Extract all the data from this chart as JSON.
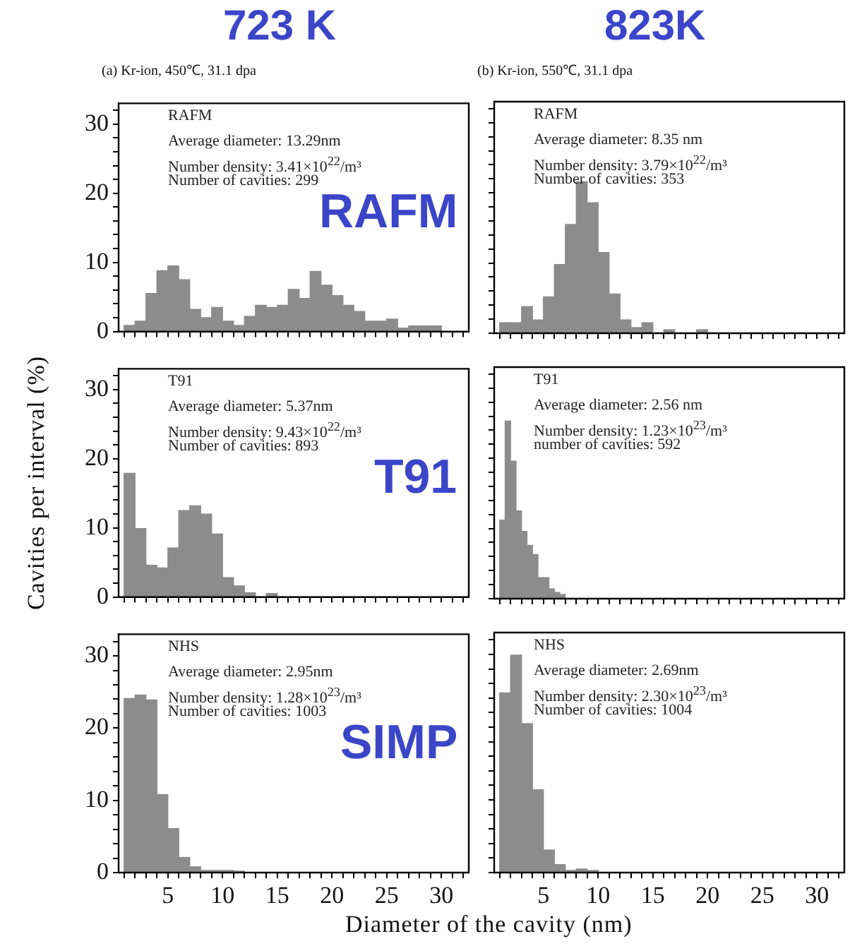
{
  "chart_data": [
    {
      "type": "histogram",
      "title": "723 K",
      "subtitle": "(a) Kr-ion,  450℃, 31.1 dpa",
      "annotations": [
        "RAFM",
        "Average diameter: 13.29nm",
        "Number density: 3.41×10$^{22}$/m³",
        "Number of cavities: 299",
        "RAFM"
      ],
      "bins": [
        1,
        2,
        3,
        4,
        5,
        6,
        7,
        8,
        9,
        10,
        11,
        12,
        13,
        14,
        15,
        16,
        17,
        18,
        19,
        20,
        21,
        22,
        23,
        24,
        25,
        26,
        27,
        28,
        29,
        30
      ],
      "values": [
        0.9,
        1.5,
        5.5,
        8.8,
        9.5,
        7.5,
        3.2,
        2.0,
        3.5,
        1.5,
        0.9,
        2.2,
        3.8,
        3.5,
        3.8,
        6.1,
        4.8,
        8.7,
        6.7,
        5.2,
        3.8,
        2.9,
        1.5,
        1.5,
        1.8,
        0.5,
        0.8,
        0.8,
        0.8
      ],
      "color": "#8c8c8c",
      "xlim": [
        0.5,
        32.5
      ],
      "ylim": [
        0,
        33
      ],
      "xticks": [
        {
          "value": 1,
          "label": null
        },
        {
          "value": 2,
          "label": null
        },
        {
          "value": 3,
          "label": null
        },
        {
          "value": 4,
          "label": null
        },
        5,
        {
          "value": 6,
          "label": null
        },
        {
          "value": 7,
          "label": null
        },
        {
          "value": 8,
          "label": null
        },
        {
          "value": 9,
          "label": null
        },
        10,
        {
          "value": 11,
          "label": null
        },
        {
          "value": 12,
          "label": null
        },
        {
          "value": 13,
          "label": null
        },
        {
          "value": 14,
          "label": null
        },
        15,
        {
          "value": 16,
          "label": null
        },
        {
          "value": 17,
          "label": null
        },
        {
          "value": 18,
          "label": null
        },
        {
          "value": 19,
          "label": null
        },
        20,
        {
          "value": 21,
          "label": null
        },
        {
          "value": 22,
          "label": null
        },
        {
          "value": 23,
          "label": null
        },
        {
          "value": 24,
          "label": null
        },
        25,
        {
          "value": 26,
          "label": null
        },
        {
          "value": 27,
          "label": null
        },
        {
          "value": 28,
          "label": null
        },
        {
          "value": 29,
          "label": null
        },
        30,
        {
          "value": 31,
          "label": null
        },
        {
          "value": 32,
          "label": null
        }
      ],
      "yticks": [
        0,
        {
          "value": 2,
          "label": null
        },
        {
          "value": 4,
          "label": null
        },
        {
          "value": 6,
          "label": null
        },
        {
          "value": 8,
          "label": null
        },
        10,
        {
          "value": 12,
          "label": null
        },
        {
          "value": 14,
          "label": null
        },
        {
          "value": 16,
          "label": null
        },
        {
          "value": 18,
          "label": null
        },
        20,
        {
          "value": 22,
          "label": null
        },
        {
          "value": 24,
          "label": null
        },
        {
          "value": 26,
          "label": null
        },
        {
          "value": 28,
          "label": null
        },
        30,
        {
          "value": 32,
          "label": null
        }
      ],
      "tick_labels": "y"
    },
    {
      "type": "histogram",
      "title": "823K",
      "subtitle": "(b) Kr-ion, 550℃, 31.1 dpa",
      "annotations": [
        "RAFM",
        "Average diameter: 8.35 nm",
        "Number density: 3.79×10$^{22}$/m³",
        "Number of cavities: 353"
      ],
      "bins": [
        1,
        2,
        3,
        4,
        5,
        6,
        7,
        8,
        9,
        10,
        11,
        12,
        13,
        14,
        15,
        16,
        17,
        18,
        19,
        20
      ],
      "values": [
        1.5,
        1.5,
        3.8,
        1.9,
        5.2,
        9.8,
        15.5,
        21.6,
        18.6,
        11.5,
        5.6,
        1.9,
        0.8,
        1.5,
        0,
        0.5,
        0,
        0,
        0.5
      ],
      "color": "#8c8c8c",
      "xlim": [
        0.5,
        32.5
      ],
      "ylim": [
        0,
        33
      ],
      "xticks": [
        {
          "value": 1,
          "label": null
        },
        {
          "value": 2,
          "label": null
        },
        {
          "value": 3,
          "label": null
        },
        {
          "value": 4,
          "label": null
        },
        5,
        {
          "value": 6,
          "label": null
        },
        {
          "value": 7,
          "label": null
        },
        {
          "value": 8,
          "label": null
        },
        {
          "value": 9,
          "label": null
        },
        10,
        {
          "value": 11,
          "label": null
        },
        {
          "value": 12,
          "label": null
        },
        {
          "value": 13,
          "label": null
        },
        {
          "value": 14,
          "label": null
        },
        15,
        {
          "value": 16,
          "label": null
        },
        {
          "value": 17,
          "label": null
        },
        {
          "value": 18,
          "label": null
        },
        {
          "value": 19,
          "label": null
        },
        20,
        {
          "value": 21,
          "label": null
        },
        {
          "value": 22,
          "label": null
        },
        {
          "value": 23,
          "label": null
        },
        {
          "value": 24,
          "label": null
        },
        25,
        {
          "value": 26,
          "label": null
        },
        {
          "value": 27,
          "label": null
        },
        {
          "value": 28,
          "label": null
        },
        {
          "value": 29,
          "label": null
        },
        30,
        {
          "value": 31,
          "label": null
        },
        {
          "value": 32,
          "label": null
        }
      ],
      "yticks": [
        0,
        {
          "value": 2,
          "label": null
        },
        {
          "value": 4,
          "label": null
        },
        {
          "value": 6,
          "label": null
        },
        {
          "value": 8,
          "label": null
        },
        10,
        {
          "value": 12,
          "label": null
        },
        {
          "value": 14,
          "label": null
        },
        {
          "value": 16,
          "label": null
        },
        {
          "value": 18,
          "label": null
        },
        20,
        {
          "value": 22,
          "label": null
        },
        {
          "value": 24,
          "label": null
        },
        {
          "value": 26,
          "label": null
        },
        {
          "value": 28,
          "label": null
        },
        30,
        {
          "value": 32,
          "label": null
        }
      ],
      "tick_labels": false
    },
    {
      "type": "histogram",
      "ylabel": "Cavities per interval (%)",
      "annotations": [
        "T91",
        "Average diameter: 5.37nm",
        "Number density: 9.43×10$^{22}$/m³",
        "Number of cavities: 893",
        "T91"
      ],
      "bins": [
        1,
        2,
        3,
        4,
        5,
        6,
        7,
        8,
        9,
        10,
        11,
        12,
        13,
        14,
        15
      ],
      "values": [
        17.9,
        9.9,
        4.6,
        4.2,
        7.1,
        12.5,
        13.2,
        12.0,
        9.1,
        2.8,
        1.6,
        0.6,
        0,
        0.5
      ],
      "color": "#8c8c8c",
      "xlim": [
        0.5,
        32.5
      ],
      "ylim": [
        0,
        33
      ],
      "xticks": [
        {
          "value": 1,
          "label": null
        },
        {
          "value": 2,
          "label": null
        },
        {
          "value": 3,
          "label": null
        },
        {
          "value": 4,
          "label": null
        },
        5,
        {
          "value": 6,
          "label": null
        },
        {
          "value": 7,
          "label": null
        },
        {
          "value": 8,
          "label": null
        },
        {
          "value": 9,
          "label": null
        },
        10,
        {
          "value": 11,
          "label": null
        },
        {
          "value": 12,
          "label": null
        },
        {
          "value": 13,
          "label": null
        },
        {
          "value": 14,
          "label": null
        },
        15,
        {
          "value": 16,
          "label": null
        },
        {
          "value": 17,
          "label": null
        },
        {
          "value": 18,
          "label": null
        },
        {
          "value": 19,
          "label": null
        },
        20,
        {
          "value": 21,
          "label": null
        },
        {
          "value": 22,
          "label": null
        },
        {
          "value": 23,
          "label": null
        },
        {
          "value": 24,
          "label": null
        },
        25,
        {
          "value": 26,
          "label": null
        },
        {
          "value": 27,
          "label": null
        },
        {
          "value": 28,
          "label": null
        },
        {
          "value": 29,
          "label": null
        },
        30,
        {
          "value": 31,
          "label": null
        },
        {
          "value": 32,
          "label": null
        }
      ],
      "yticks": [
        0,
        {
          "value": 2,
          "label": null
        },
        {
          "value": 4,
          "label": null
        },
        {
          "value": 6,
          "label": null
        },
        {
          "value": 8,
          "label": null
        },
        10,
        {
          "value": 12,
          "label": null
        },
        {
          "value": 14,
          "label": null
        },
        {
          "value": 16,
          "label": null
        },
        {
          "value": 18,
          "label": null
        },
        20,
        {
          "value": 22,
          "label": null
        },
        {
          "value": 24,
          "label": null
        },
        {
          "value": 26,
          "label": null
        },
        {
          "value": 28,
          "label": null
        },
        30,
        {
          "value": 32,
          "label": null
        }
      ],
      "tick_labels": "y"
    },
    {
      "type": "histogram",
      "annotations": [
        "T91",
        "Average diameter: 2.56 nm",
        "Number density: 1.23×10$^{23}$/m³",
        "number of cavities: 592"
      ],
      "bins": [
        1,
        1.5,
        2,
        2.5,
        3,
        3.5,
        4,
        4.5,
        5,
        5.5,
        6,
        6.5,
        7
      ],
      "values": [
        11.2,
        25.3,
        19.6,
        12.5,
        9.6,
        7.6,
        6.3,
        3.0,
        3.0,
        1.4,
        0.9,
        0.6
      ],
      "color": "#8c8c8c",
      "xlim": [
        0.5,
        32.5
      ],
      "ylim": [
        0,
        33
      ],
      "xticks": [
        {
          "value": 1,
          "label": null
        },
        {
          "value": 2,
          "label": null
        },
        {
          "value": 3,
          "label": null
        },
        {
          "value": 4,
          "label": null
        },
        5,
        {
          "value": 6,
          "label": null
        },
        {
          "value": 7,
          "label": null
        },
        {
          "value": 8,
          "label": null
        },
        {
          "value": 9,
          "label": null
        },
        10,
        {
          "value": 11,
          "label": null
        },
        {
          "value": 12,
          "label": null
        },
        {
          "value": 13,
          "label": null
        },
        {
          "value": 14,
          "label": null
        },
        15,
        {
          "value": 16,
          "label": null
        },
        {
          "value": 17,
          "label": null
        },
        {
          "value": 18,
          "label": null
        },
        {
          "value": 19,
          "label": null
        },
        20,
        {
          "value": 21,
          "label": null
        },
        {
          "value": 22,
          "label": null
        },
        {
          "value": 23,
          "label": null
        },
        {
          "value": 24,
          "label": null
        },
        25,
        {
          "value": 26,
          "label": null
        },
        {
          "value": 27,
          "label": null
        },
        {
          "value": 28,
          "label": null
        },
        {
          "value": 29,
          "label": null
        },
        30,
        {
          "value": 31,
          "label": null
        },
        {
          "value": 32,
          "label": null
        }
      ],
      "yticks": [
        0,
        {
          "value": 2,
          "label": null
        },
        {
          "value": 4,
          "label": null
        },
        {
          "value": 6,
          "label": null
        },
        {
          "value": 8,
          "label": null
        },
        10,
        {
          "value": 12,
          "label": null
        },
        {
          "value": 14,
          "label": null
        },
        {
          "value": 16,
          "label": null
        },
        {
          "value": 18,
          "label": null
        },
        20,
        {
          "value": 22,
          "label": null
        },
        {
          "value": 24,
          "label": null
        },
        {
          "value": 26,
          "label": null
        },
        {
          "value": 28,
          "label": null
        },
        30,
        {
          "value": 32,
          "label": null
        }
      ],
      "tick_labels": false
    },
    {
      "type": "histogram",
      "xlabel": "Diameter of the cavity (nm)",
      "annotations": [
        "NHS",
        "Average diameter: 2.95nm",
        "Number density: 1.28×10$^{23}$/m³",
        "Number of cavities: 1003",
        "SIMP"
      ],
      "bins": [
        1,
        2,
        3,
        4,
        5,
        6,
        7,
        8,
        9,
        10,
        11,
        12
      ],
      "values": [
        24.1,
        24.6,
        23.9,
        10.8,
        6.1,
        2.1,
        0.8,
        0.3,
        0.3,
        0.3,
        0.2
      ],
      "color": "#8c8c8c",
      "xlim": [
        0.5,
        32.5
      ],
      "ylim": [
        0,
        33
      ],
      "xticks": [
        {
          "value": 1,
          "label": null
        },
        {
          "value": 2,
          "label": null
        },
        {
          "value": 3,
          "label": null
        },
        {
          "value": 4,
          "label": null
        },
        5,
        {
          "value": 6,
          "label": null
        },
        {
          "value": 7,
          "label": null
        },
        {
          "value": 8,
          "label": null
        },
        {
          "value": 9,
          "label": null
        },
        10,
        {
          "value": 11,
          "label": null
        },
        {
          "value": 12,
          "label": null
        },
        {
          "value": 13,
          "label": null
        },
        {
          "value": 14,
          "label": null
        },
        15,
        {
          "value": 16,
          "label": null
        },
        {
          "value": 17,
          "label": null
        },
        {
          "value": 18,
          "label": null
        },
        {
          "value": 19,
          "label": null
        },
        20,
        {
          "value": 21,
          "label": null
        },
        {
          "value": 22,
          "label": null
        },
        {
          "value": 23,
          "label": null
        },
        {
          "value": 24,
          "label": null
        },
        25,
        {
          "value": 26,
          "label": null
        },
        {
          "value": 27,
          "label": null
        },
        {
          "value": 28,
          "label": null
        },
        {
          "value": 29,
          "label": null
        },
        30,
        {
          "value": 31,
          "label": null
        },
        {
          "value": 32,
          "label": null
        }
      ],
      "yticks": [
        0,
        {
          "value": 2,
          "label": null
        },
        {
          "value": 4,
          "label": null
        },
        {
          "value": 6,
          "label": null
        },
        {
          "value": 8,
          "label": null
        },
        10,
        {
          "value": 12,
          "label": null
        },
        {
          "value": 14,
          "label": null
        },
        {
          "value": 16,
          "label": null
        },
        {
          "value": 18,
          "label": null
        },
        20,
        {
          "value": 22,
          "label": null
        },
        {
          "value": 24,
          "label": null
        },
        {
          "value": 26,
          "label": null
        },
        {
          "value": 28,
          "label": null
        },
        30,
        {
          "value": 32,
          "label": null
        }
      ]
    },
    {
      "type": "histogram",
      "annotations": [
        "NHS",
        "Average diameter: 2.69nm",
        "Number density: 2.30×10$^{23}$/m³",
        "Number of cavities: 1004"
      ],
      "bins": [
        1,
        2,
        3,
        4,
        5,
        6,
        7,
        8,
        9,
        10
      ],
      "values": [
        24.7,
        29.9,
        20.5,
        11.4,
        3.1,
        1.1,
        0.3,
        0.5,
        0.3
      ],
      "color": "#8c8c8c",
      "xlim": [
        0.5,
        32.5
      ],
      "ylim": [
        0,
        33
      ],
      "xticks": [
        {
          "value": 1,
          "label": null
        },
        {
          "value": 2,
          "label": null
        },
        {
          "value": 3,
          "label": null
        },
        {
          "value": 4,
          "label": null
        },
        5,
        {
          "value": 6,
          "label": null
        },
        {
          "value": 7,
          "label": null
        },
        {
          "value": 8,
          "label": null
        },
        {
          "value": 9,
          "label": null
        },
        10,
        {
          "value": 11,
          "label": null
        },
        {
          "value": 12,
          "label": null
        },
        {
          "value": 13,
          "label": null
        },
        {
          "value": 14,
          "label": null
        },
        15,
        {
          "value": 16,
          "label": null
        },
        {
          "value": 17,
          "label": null
        },
        {
          "value": 18,
          "label": null
        },
        {
          "value": 19,
          "label": null
        },
        20,
        {
          "value": 21,
          "label": null
        },
        {
          "value": 22,
          "label": null
        },
        {
          "value": 23,
          "label": null
        },
        {
          "value": 24,
          "label": null
        },
        25,
        {
          "value": 26,
          "label": null
        },
        {
          "value": 27,
          "label": null
        },
        {
          "value": 28,
          "label": null
        },
        {
          "value": 29,
          "label": null
        },
        30,
        {
          "value": 31,
          "label": null
        },
        {
          "value": 32,
          "label": null
        }
      ],
      "yticks": [
        0,
        {
          "value": 2,
          "label": null
        },
        {
          "value": 4,
          "label": null
        },
        {
          "value": 6,
          "label": null
        },
        {
          "value": 8,
          "label": null
        },
        10,
        {
          "value": 12,
          "label": null
        },
        {
          "value": 14,
          "label": null
        },
        {
          "value": 16,
          "label": null
        },
        {
          "value": 18,
          "label": null
        },
        20,
        {
          "value": 22,
          "label": null
        },
        {
          "value": 24,
          "label": null
        },
        {
          "value": 26,
          "label": null
        },
        {
          "value": 28,
          "label": null
        },
        30,
        {
          "value": 32,
          "label": null
        }
      ],
      "tick_labels": "x"
    }
  ]
}
